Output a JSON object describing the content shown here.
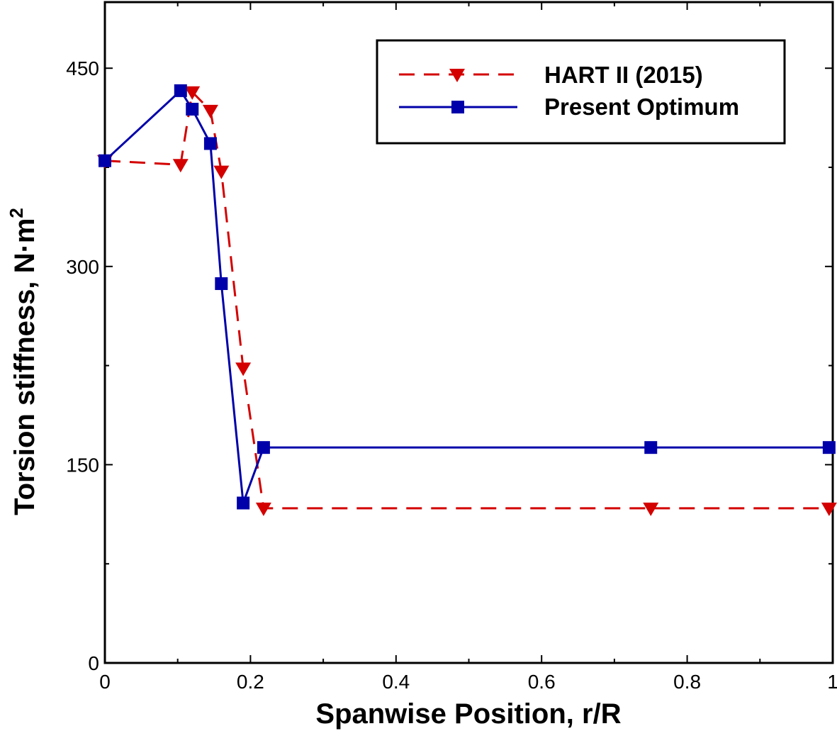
{
  "chart_data": {
    "type": "line",
    "title": "",
    "xlabel": "Spanwise Position, r/R",
    "ylabel": "Torsion stiffness, N·m",
    "ylabel_superscript": "2",
    "xlim": [
      0,
      1
    ],
    "ylim": [
      0,
      500
    ],
    "xticks": [
      0,
      0.2,
      0.4,
      0.6,
      0.8,
      1
    ],
    "xtick_labels": [
      "0",
      "0.2",
      "0.4",
      "0.6",
      "0.8",
      "1"
    ],
    "xminor": [
      0.1,
      0.3,
      0.5,
      0.7,
      0.9
    ],
    "yticks": [
      0,
      150,
      300,
      450
    ],
    "ytick_labels": [
      "0",
      "150",
      "300",
      "450"
    ],
    "yminor": [
      75,
      225,
      375
    ],
    "grid": false,
    "legend_position": "top-right",
    "series": [
      {
        "name": "HART II (2015)",
        "color": "#d40000",
        "line_style": "dashed",
        "marker": "triangle-down",
        "x": [
          0,
          0.104,
          0.12,
          0.145,
          0.16,
          0.19,
          0.218,
          0.75,
          0.995
        ],
        "y": [
          380,
          377,
          432,
          418,
          372,
          223,
          117,
          117,
          117
        ]
      },
      {
        "name": "Present Optimum",
        "color": "#0000aa",
        "line_style": "solid",
        "marker": "square",
        "x": [
          0,
          0.104,
          0.12,
          0.145,
          0.16,
          0.19,
          0.218,
          0.75,
          0.995
        ],
        "y": [
          380,
          433,
          419,
          393,
          287,
          121,
          163,
          163,
          163
        ]
      }
    ]
  }
}
